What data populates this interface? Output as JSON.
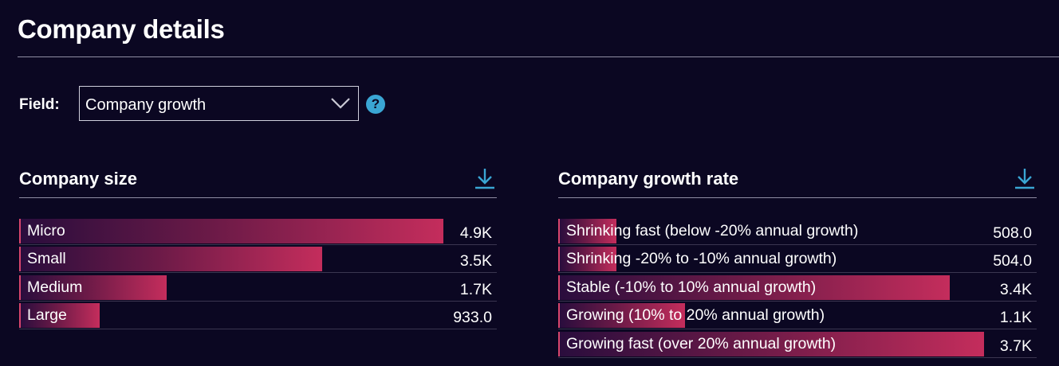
{
  "page": {
    "title": "Company details"
  },
  "field": {
    "label": "Field:",
    "selected": "Company growth",
    "help_symbol": "?"
  },
  "colors": {
    "background": "#0b0722",
    "bar_gradient_start": "#2a0d3d",
    "bar_gradient_end": "#c42d5c",
    "accent_icon": "#3aa6d4"
  },
  "panels": {
    "size": {
      "title": "Company size",
      "download_icon": "download-icon",
      "max": 4900,
      "rows": [
        {
          "label": "Micro",
          "value": 4900,
          "display": "4.9K"
        },
        {
          "label": "Small",
          "value": 3500,
          "display": "3.5K"
        },
        {
          "label": "Medium",
          "value": 1700,
          "display": "1.7K"
        },
        {
          "label": "Large",
          "value": 933,
          "display": "933.0"
        }
      ]
    },
    "growth": {
      "title": "Company growth rate",
      "download_icon": "download-icon",
      "max": 3700,
      "rows": [
        {
          "label": "Shrinking fast (below -20% annual growth)",
          "value": 508,
          "display": "508.0"
        },
        {
          "label": "Shrinking -20% to -10% annual growth)",
          "value": 504,
          "display": "504.0"
        },
        {
          "label": "Stable (-10% to 10% annual growth)",
          "value": 3400,
          "display": "3.4K"
        },
        {
          "label": "Growing (10% to 20% annual growth)",
          "value": 1100,
          "display": "1.1K"
        },
        {
          "label": "Growing fast (over 20% annual growth)",
          "value": 3700,
          "display": "3.7K"
        }
      ]
    }
  }
}
